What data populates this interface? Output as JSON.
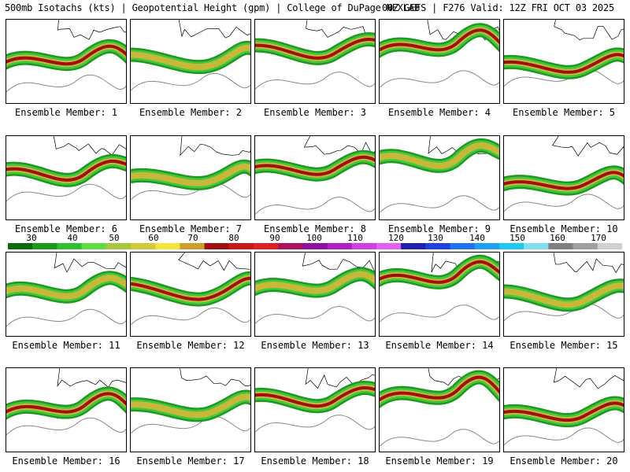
{
  "header": {
    "left": "500mb Isotachs (kts) | Geopotential Height (gpm) | College of DuPage NEXLAB",
    "right": "00Z GEFS | F276 Valid: 12Z FRI OCT 03 2025"
  },
  "members": [
    {
      "label": "Ensemble Member: 1"
    },
    {
      "label": "Ensemble Member: 2"
    },
    {
      "label": "Ensemble Member: 3"
    },
    {
      "label": "Ensemble Member: 4"
    },
    {
      "label": "Ensemble Member: 5"
    },
    {
      "label": "Ensemble Member: 6"
    },
    {
      "label": "Ensemble Member: 7"
    },
    {
      "label": "Ensemble Member: 8"
    },
    {
      "label": "Ensemble Member: 9"
    },
    {
      "label": "Ensemble Member: 10"
    },
    {
      "label": "Ensemble Member: 11"
    },
    {
      "label": "Ensemble Member: 12"
    },
    {
      "label": "Ensemble Member: 13"
    },
    {
      "label": "Ensemble Member: 14"
    },
    {
      "label": "Ensemble Member: 15"
    },
    {
      "label": "Ensemble Member: 16"
    },
    {
      "label": "Ensemble Member: 17"
    },
    {
      "label": "Ensemble Member: 18"
    },
    {
      "label": "Ensemble Member: 19"
    },
    {
      "label": "Ensemble Member: 20"
    }
  ],
  "colorbar": {
    "labels": [
      "30",
      "40",
      "50",
      "60",
      "70",
      "80",
      "90",
      "100",
      "110",
      "120",
      "130",
      "140",
      "150",
      "160",
      "170"
    ],
    "colors": [
      "#0b6b0b",
      "#1a9a1a",
      "#2fbf2f",
      "#5fdc3f",
      "#a8c83c",
      "#d4c93a",
      "#f0e63c",
      "#c8a02a",
      "#a01010",
      "#c81818",
      "#e02020",
      "#b01060",
      "#9010a0",
      "#b020c0",
      "#d040e0",
      "#e060f0",
      "#2020b0",
      "#2040e0",
      "#2070f0",
      "#20a0f0",
      "#20c8f0",
      "#80e0f0",
      "#808080",
      "#a0a0a0",
      "#d0d0d0"
    ]
  }
}
